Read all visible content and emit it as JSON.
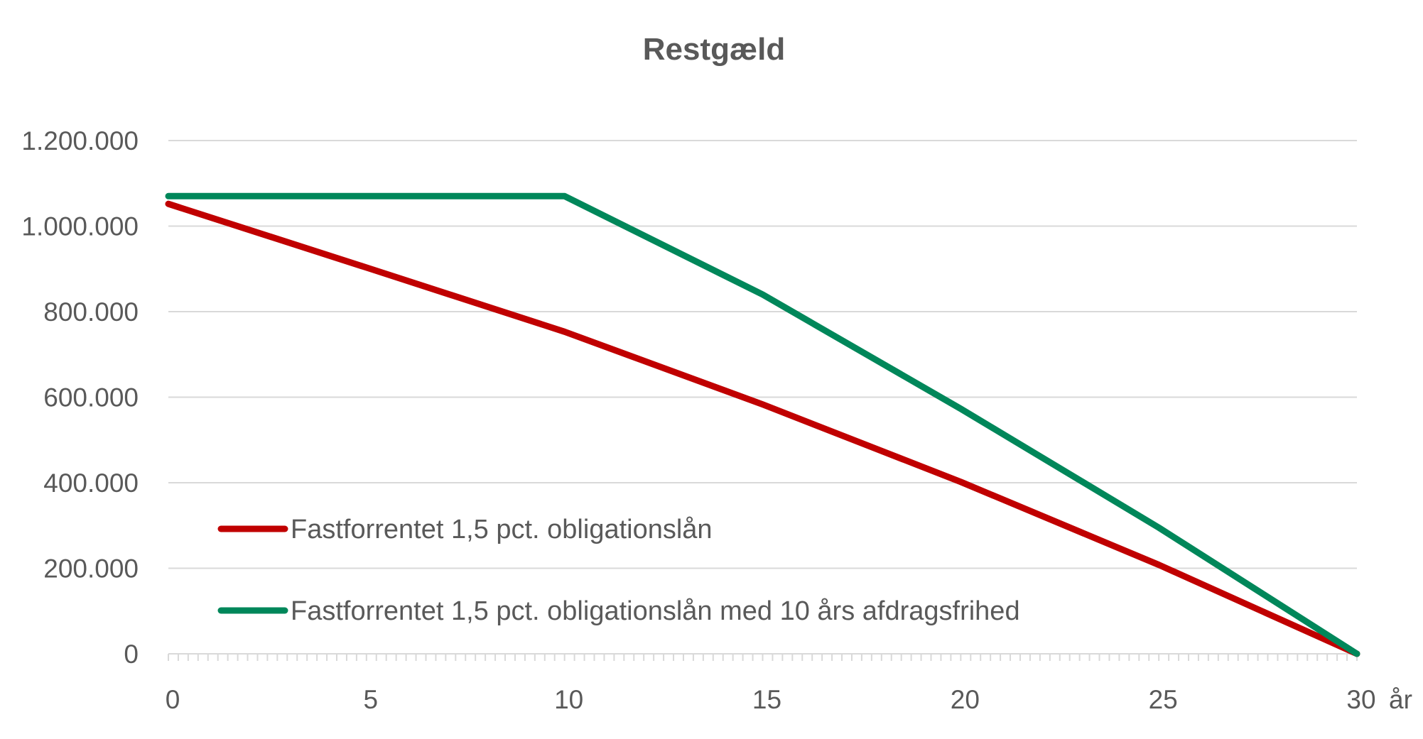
{
  "chart_data": {
    "type": "line",
    "title": "Restgæld",
    "xlabel": "år",
    "ylabel": "",
    "xlim": [
      0,
      30
    ],
    "ylim": [
      0,
      1200000
    ],
    "x_ticks": [
      0,
      5,
      10,
      15,
      20,
      25,
      30
    ],
    "x_tick_labels": [
      "0",
      "5",
      "10",
      "15",
      "20",
      "25",
      "30"
    ],
    "y_ticks": [
      0,
      200000,
      400000,
      600000,
      800000,
      1000000,
      1200000
    ],
    "y_tick_labels": [
      "0",
      "200.000",
      "400.000",
      "600.000",
      "800.000",
      "1.000.000",
      "1.200.000"
    ],
    "grid": "horizontal",
    "legend_position": "bottom-left (inside plot)",
    "series": [
      {
        "name": "Fastforrentet 1,5 pct. obligationslån",
        "color": "#C00000",
        "x": [
          0,
          5,
          10,
          15,
          20,
          25,
          30
        ],
        "y": [
          1052000,
          903000,
          753000,
          583000,
          402000,
          208000,
          0
        ]
      },
      {
        "name": "Fastforrentet 1,5 pct. obligationslån med 10 års afdragsfrihed",
        "color": "#00875A",
        "x": [
          0,
          10,
          15,
          20,
          25,
          30
        ],
        "y": [
          1070000,
          1070000,
          840000,
          573000,
          295000,
          0
        ]
      }
    ]
  }
}
